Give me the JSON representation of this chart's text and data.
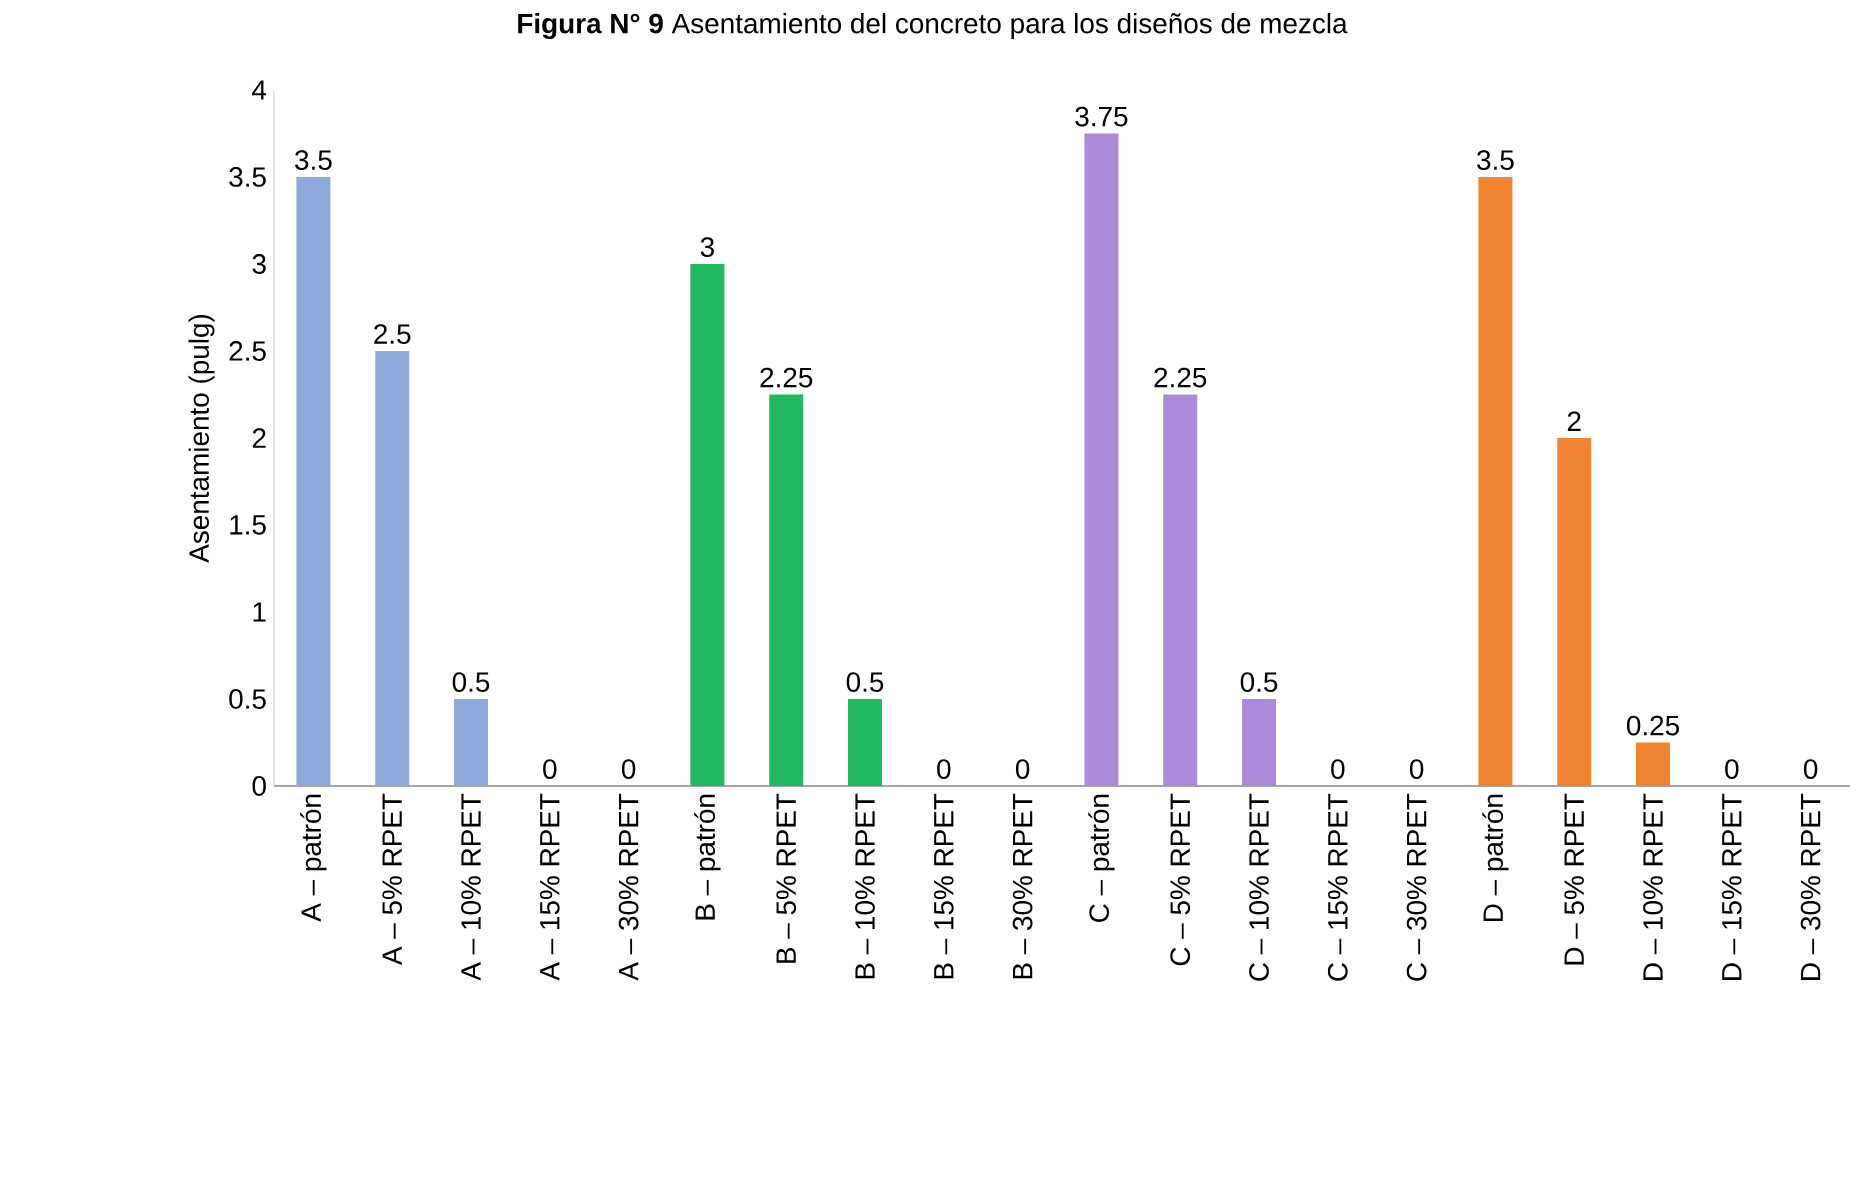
{
  "chart_data": {
    "type": "bar",
    "title": "**Figura N° 9** Asentamiento del concreto para los diseños de mezcla",
    "ylabel": "Asentamiento (pulg)",
    "categories": [
      "A – patrón",
      "A – 5% RPET",
      "A – 10% RPET",
      "A – 15% RPET",
      "A – 30% RPET",
      "B – patrón",
      "B – 5% RPET",
      "B – 10% RPET",
      "B – 15% RPET",
      "B – 30% RPET",
      "C – patrón",
      "C – 5% RPET",
      "C – 10% RPET",
      "C – 15% RPET",
      "C – 30% RPET",
      "D – patrón",
      "D – 5% RPET",
      "D – 10% RPET",
      "D – 15% RPET",
      "D – 30% RPET"
    ],
    "values": [
      3.5,
      2.5,
      0.5,
      0,
      0,
      3,
      2.25,
      0.5,
      0,
      0,
      3.75,
      2.25,
      0.5,
      0,
      0,
      3.5,
      2,
      0.25,
      0,
      0
    ],
    "colors": [
      "#8eaadb",
      "#8eaadb",
      "#8eaadb",
      "#8eaadb",
      "#8eaadb",
      "#22b860",
      "#22b860",
      "#22b860",
      "#22b860",
      "#22b860",
      "#ab8ad8",
      "#ab8ad8",
      "#ab8ad8",
      "#ab8ad8",
      "#ab8ad8",
      "#ef8532",
      "#ef8532",
      "#ef8532",
      "#ef8532",
      "#ef8532"
    ],
    "ylim": [
      0,
      4
    ],
    "yticks": [
      0,
      0.5,
      1,
      1.5,
      2,
      2.5,
      3,
      3.5,
      4
    ],
    "data_labels": true
  }
}
